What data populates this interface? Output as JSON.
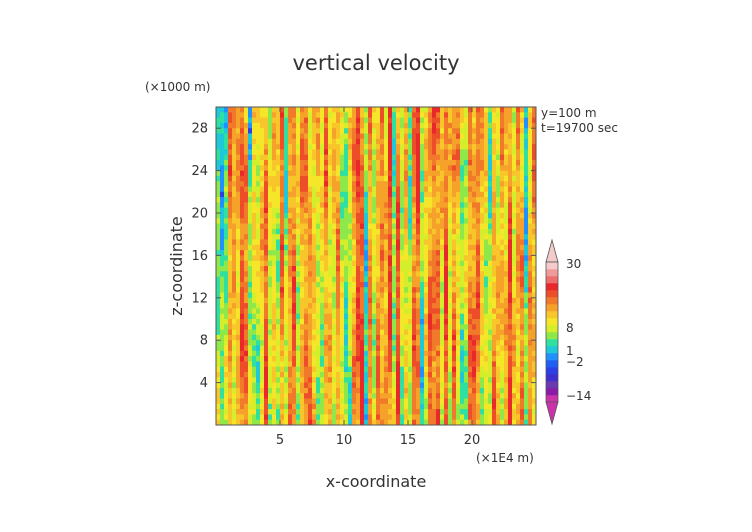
{
  "chart_data": {
    "type": "heatmap",
    "title": "vertical velocity",
    "xlabel": "x-coordinate",
    "ylabel": "z-coordinate",
    "x_unit": "(×1E4 m)",
    "y_unit": "(×1000 m)",
    "annotations": [
      "y=100 m",
      "t=19700 sec"
    ],
    "xlim": [
      0,
      25
    ],
    "ylim": [
      0,
      30
    ],
    "x_ticks": [
      5,
      10,
      15,
      20
    ],
    "y_ticks": [
      4,
      8,
      12,
      16,
      20,
      24,
      28
    ],
    "colorbar": {
      "labels": [
        {
          "value": 30,
          "text": "30"
        },
        {
          "value": 8,
          "text": "8"
        },
        {
          "value": 1,
          "text": "1"
        },
        {
          "value": -2,
          "text": "−2"
        },
        {
          "value": -14,
          "text": "−14"
        }
      ],
      "levels": [
        {
          "color": "#cc33aa"
        },
        {
          "color": "#8a1aa8"
        },
        {
          "color": "#6a3bb0"
        },
        {
          "color": "#3f2fd0"
        },
        {
          "color": "#2b3fe6"
        },
        {
          "color": "#1f5ff2"
        },
        {
          "color": "#1e90ff"
        },
        {
          "color": "#1ec8d8"
        },
        {
          "color": "#2fe0a0"
        },
        {
          "color": "#8ee84a"
        },
        {
          "color": "#d4ee2c"
        },
        {
          "color": "#f5e62a"
        },
        {
          "color": "#f8c62a"
        },
        {
          "color": "#f5a12a"
        },
        {
          "color": "#f07a2a"
        },
        {
          "color": "#ee4d2a"
        },
        {
          "color": "#e8282a"
        },
        {
          "color": "#ee6e6e"
        },
        {
          "color": "#f09a9a"
        },
        {
          "color": "#f5caca"
        }
      ]
    },
    "field_palette": [
      "#2b3fe6",
      "#1e90ff",
      "#1ec8d8",
      "#2fe0a0",
      "#8ee84a",
      "#d4ee2c",
      "#f5e62a",
      "#f8c62a",
      "#f5a12a",
      "#f07a2a",
      "#ee4d2a",
      "#e8282a"
    ]
  }
}
